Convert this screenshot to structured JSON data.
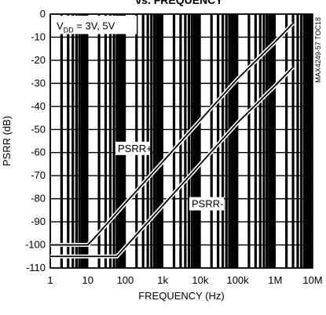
{
  "chart_data": {
    "type": "line",
    "title": "vs. FREQUENCY",
    "xlabel": "FREQUENCY (Hz)",
    "ylabel": "PSRR (dB)",
    "x_scale": "log",
    "xlim": [
      1,
      10000000
    ],
    "ylim": [
      -110,
      0
    ],
    "x_ticks": [
      1,
      10,
      100,
      1000,
      10000,
      100000,
      1000000,
      10000000
    ],
    "x_tick_labels": [
      "1",
      "10",
      "100",
      "1k",
      "10k",
      "100k",
      "1M",
      "10M"
    ],
    "y_ticks": [
      0,
      -10,
      -20,
      -30,
      -40,
      -50,
      -60,
      -70,
      -80,
      -90,
      -100,
      -110
    ],
    "y_tick_labels": [
      "0",
      "-10",
      "-20",
      "-30",
      "-40",
      "-50",
      "-60",
      "-70",
      "-80",
      "-90",
      "-100",
      "-110"
    ],
    "grid": true,
    "annotation": {
      "main": "V",
      "sub": "DD",
      "rest": " = 3V, 5V"
    },
    "code_label": "MAX4249-57 TOC18",
    "series": [
      {
        "name": "PSRR+",
        "x": [
          1,
          10,
          15,
          100,
          1000,
          10000,
          100000,
          1000000,
          3000000
        ],
        "y": [
          -100,
          -100,
          -97,
          -82,
          -64,
          -46,
          -28,
          -12,
          -4
        ]
      },
      {
        "name": "PSRR-",
        "x": [
          1,
          60,
          100,
          1000,
          10000,
          100000,
          1000000,
          3000000
        ],
        "y": [
          -105,
          -105,
          -101,
          -83,
          -65,
          -47,
          -31,
          -23
        ]
      }
    ]
  }
}
